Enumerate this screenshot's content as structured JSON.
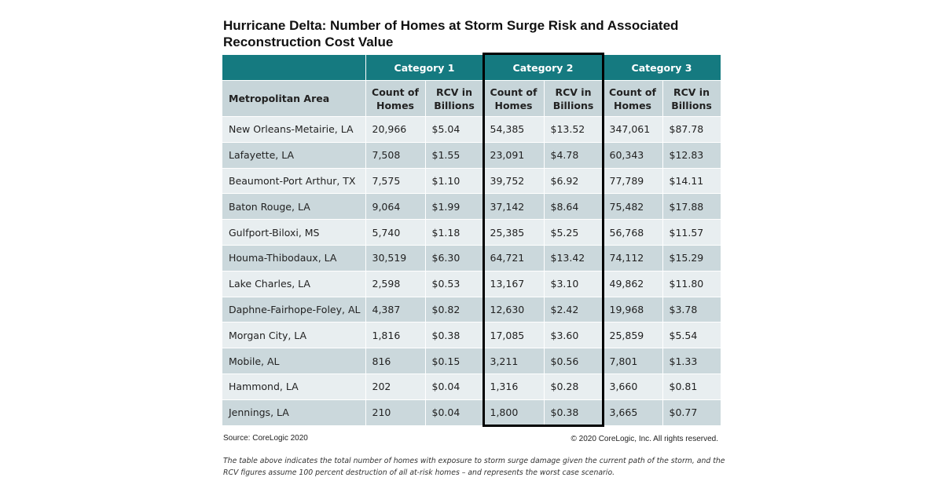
{
  "title": "Hurricane Delta: Number of Homes at Storm Surge Risk and Associated Reconstruction Cost Value",
  "categories": [
    "Category 1",
    "Category 2",
    "Category 3"
  ],
  "columns": {
    "area": "Metropolitan Area",
    "count": "Count of Homes",
    "rcv": "RCV in Billions"
  },
  "rows": [
    [
      "New Orleans-Metairie, LA",
      "20,966",
      "$5.04",
      "54,385",
      "$13.52",
      "347,061",
      "$87.78"
    ],
    [
      "Lafayette, LA",
      "7,508",
      "$1.55",
      "23,091",
      "$4.78",
      "60,343",
      "$12.83"
    ],
    [
      "Beaumont-Port Arthur, TX",
      "7,575",
      "$1.10",
      "39,752",
      "$6.92",
      "77,789",
      "$14.11"
    ],
    [
      "Baton Rouge, LA",
      "9,064",
      "$1.99",
      "37,142",
      "$8.64",
      "75,482",
      "$17.88"
    ],
    [
      "Gulfport-Biloxi, MS",
      "5,740",
      "$1.18",
      "25,385",
      "$5.25",
      "56,768",
      "$11.57"
    ],
    [
      "Houma-Thibodaux, LA",
      "30,519",
      "$6.30",
      "64,721",
      "$13.42",
      "74,112",
      "$15.29"
    ],
    [
      "Lake Charles, LA",
      "2,598",
      "$0.53",
      "13,167",
      "$3.10",
      "49,862",
      "$11.80"
    ],
    [
      "Daphne-Fairhope-Foley, AL",
      "4,387",
      "$0.82",
      "12,630",
      "$2.42",
      "19,968",
      "$3.78"
    ],
    [
      "Morgan City, LA",
      "1,816",
      "$0.38",
      "17,085",
      "$3.60",
      "25,859",
      "$5.54"
    ],
    [
      "Mobile, AL",
      "816",
      "$0.15",
      "3,211",
      "$0.56",
      "7,801",
      "$1.33"
    ],
    [
      "Hammond, LA",
      "202",
      "$0.04",
      "1,316",
      "$0.28",
      "3,660",
      "$0.81"
    ],
    [
      "Jennings, LA",
      "210",
      "$0.04",
      "1,800",
      "$0.38",
      "3,665",
      "$0.77"
    ]
  ],
  "source": "Source: CoreLogic 2020",
  "copyright": "© 2020 CoreLogic, Inc. All rights reserved.",
  "note": "The table above indicates the total number of homes with exposure to storm surge damage given the current path of the storm, and the RCV figures assume 100 percent destruction of all at-risk homes – and represents the worst case scenario.",
  "colors": {
    "header": "#157a80",
    "subheader": "#c7d5d9",
    "row_light": "#e8eef0",
    "row_dark": "#cbd8dc",
    "highlight_border": "#000000"
  }
}
